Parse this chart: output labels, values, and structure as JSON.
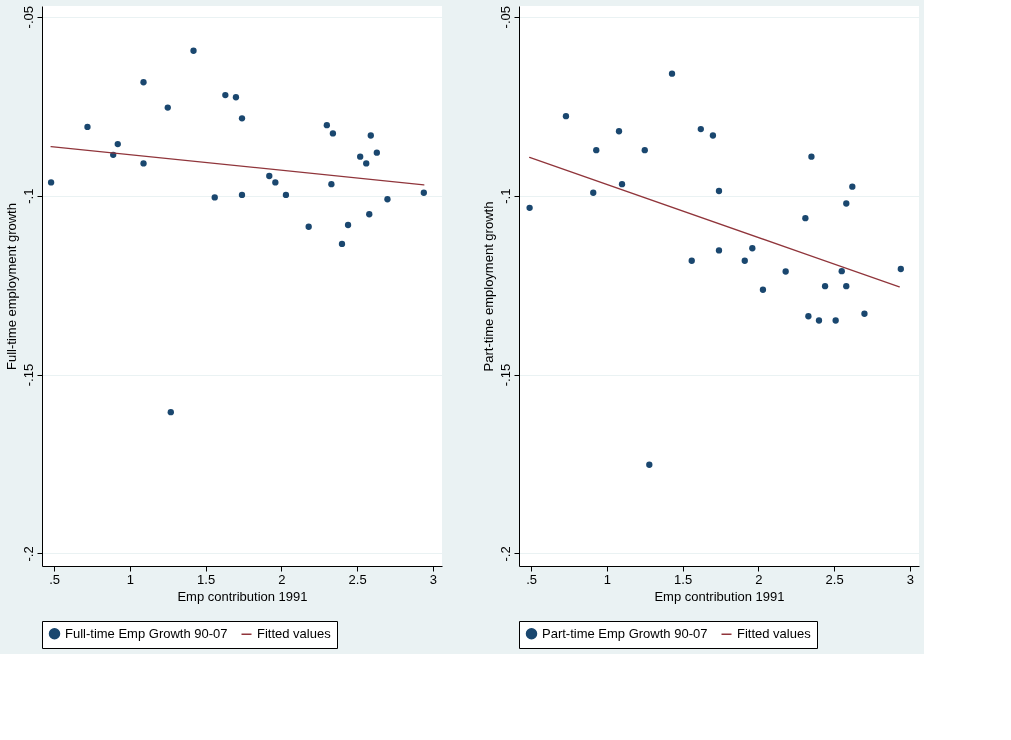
{
  "chart_data": [
    {
      "type": "scatter",
      "xlabel": "Emp contribution 1991",
      "ylabel": "Full-time employment growth",
      "xlim": [
        0.42,
        3.06
      ],
      "ylim": [
        -0.2035,
        -0.047
      ],
      "xticks": [
        {
          "value": 0.5,
          "label": ".5"
        },
        1,
        {
          "value": 1.5,
          "label": "1.5"
        },
        2,
        {
          "value": 2.5,
          "label": "2.5"
        },
        3
      ],
      "yticks": [
        {
          "value": -0.05,
          "label": "-.05"
        },
        {
          "value": -0.1,
          "label": "-.1"
        },
        {
          "value": -0.15,
          "label": "-.15"
        },
        {
          "value": -0.2,
          "label": "-.2"
        }
      ],
      "grid": "y",
      "legend": "bottom",
      "series": [
        {
          "name": "Full-time Emp Growth 90-07",
          "marker": "circle",
          "color": "#1a476f",
          "x": [
            0.48,
            0.72,
            0.89,
            0.92,
            1.09,
            1.09,
            1.25,
            1.42,
            1.56,
            1.63,
            1.7,
            1.74,
            1.74,
            1.92,
            1.96,
            2.03,
            2.18,
            2.3,
            2.34,
            2.33,
            2.4,
            2.44,
            2.52,
            2.56,
            2.59,
            2.63,
            2.58,
            2.7,
            2.94,
            1.27
          ],
          "values": [
            -0.0963,
            -0.0808,
            -0.0886,
            -0.0856,
            -0.0683,
            -0.091,
            -0.0754,
            -0.0595,
            -0.1005,
            -0.0719,
            -0.0725,
            -0.0784,
            -0.0998,
            -0.0945,
            -0.0963,
            -0.0998,
            -0.1087,
            -0.0803,
            -0.0826,
            -0.0968,
            -0.1135,
            -0.1082,
            -0.0891,
            -0.091,
            -0.0832,
            -0.088,
            -0.1052,
            -0.101,
            -0.0992,
            -0.1605
          ]
        },
        {
          "name": "Fitted values",
          "type": "line",
          "marker": "none",
          "line_style": "solid",
          "color": "#90353b",
          "x": [
            0.48,
            2.94
          ],
          "values": [
            -0.0863,
            -0.097
          ]
        }
      ]
    },
    {
      "type": "scatter",
      "xlabel": "Emp contribution 1991",
      "ylabel": "Part-time employment growth",
      "xlim": [
        0.42,
        3.06
      ],
      "ylim": [
        -0.2035,
        -0.047
      ],
      "xticks": [
        {
          "value": 0.5,
          "label": ".5"
        },
        1,
        {
          "value": 1.5,
          "label": "1.5"
        },
        2,
        {
          "value": 2.5,
          "label": "2.5"
        },
        3
      ],
      "yticks": [
        {
          "value": -0.05,
          "label": "-.05"
        },
        {
          "value": -0.1,
          "label": "-.1"
        },
        {
          "value": -0.15,
          "label": "-.15"
        },
        {
          "value": -0.2,
          "label": "-.2"
        }
      ],
      "grid": "y",
      "legend": "bottom",
      "series": [
        {
          "name": "Part-time Emp Growth 90-07",
          "marker": "circle",
          "color": "#1a476f",
          "x": [
            0.49,
            0.73,
            0.91,
            0.93,
            1.08,
            1.1,
            1.25,
            1.43,
            1.56,
            1.62,
            1.7,
            1.74,
            1.74,
            1.91,
            1.96,
            2.03,
            2.18,
            2.31,
            2.35,
            2.33,
            2.4,
            2.44,
            2.51,
            2.55,
            2.58,
            2.58,
            2.62,
            2.7,
            2.94,
            1.28
          ],
          "values": [
            -0.1034,
            -0.0778,
            -0.0992,
            -0.0873,
            -0.082,
            -0.0968,
            -0.0873,
            -0.0659,
            -0.1182,
            -0.0814,
            -0.0832,
            -0.0987,
            -0.1153,
            -0.1182,
            -0.1147,
            -0.1263,
            -0.1212,
            -0.1063,
            -0.0891,
            -0.1337,
            -0.1349,
            -0.1253,
            -0.1349,
            -0.1211,
            -0.1253,
            -0.1022,
            -0.0975,
            -0.133,
            -0.1205,
            -0.1752
          ]
        },
        {
          "name": "Fitted values",
          "type": "line",
          "marker": "none",
          "line_style": "solid",
          "color": "#90353b",
          "x": [
            0.49,
            2.93
          ],
          "values": [
            -0.0893,
            -0.1255
          ]
        }
      ]
    }
  ]
}
